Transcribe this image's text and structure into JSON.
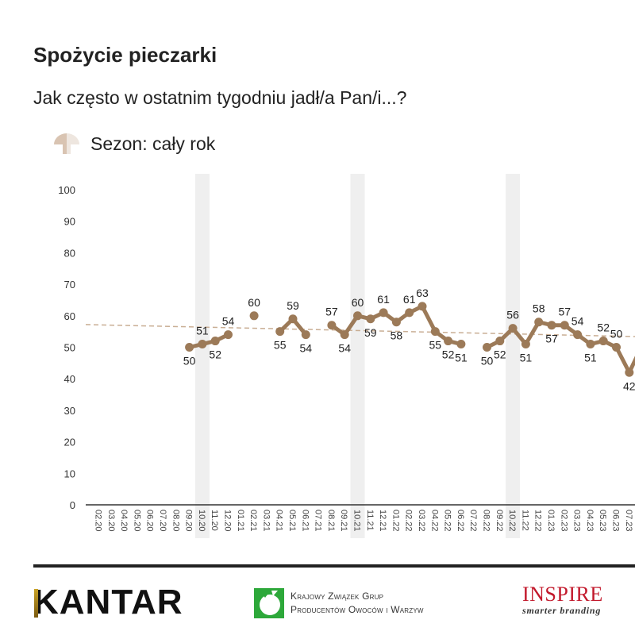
{
  "header": {
    "title": "Spożycie pieczarki",
    "subtitle": "Jak często w ostatnim tygodniu jadł/a Pan/i...?",
    "season_icon": "mushroom-icon",
    "season_label": "Sezon: cały rok"
  },
  "colors": {
    "series": "#9C7A58",
    "trend": "#C9AE94",
    "band": "#EFEFEF",
    "axis": "#333333",
    "text": "#222222"
  },
  "chart_data": {
    "type": "line",
    "title": "Spożycie pieczarki",
    "subtitle": "Jak często w ostatnim tygodniu jadł/a Pan/i...? — Sezon: cały rok",
    "xlabel": "",
    "ylabel": "",
    "ylim": [
      0,
      100
    ],
    "yticks": [
      0,
      10,
      20,
      30,
      40,
      50,
      60,
      70,
      80,
      90,
      100
    ],
    "grid": false,
    "legend": null,
    "categories": [
      "02.20",
      "03.20",
      "04.20",
      "05.20",
      "06.20",
      "07.20",
      "08.20",
      "09.20",
      "10.20",
      "11.20",
      "12.20",
      "01.21",
      "02.21",
      "03.21",
      "04.21",
      "05.21",
      "06.21",
      "07.21",
      "08.21",
      "09.21",
      "10.21",
      "11.21",
      "12.21",
      "01.22",
      "02.22",
      "03.22",
      "04.22",
      "05.22",
      "06.22",
      "07.22",
      "08.22",
      "09.22",
      "10.22",
      "11.22",
      "12.22",
      "01.23",
      "02.23",
      "03.23",
      "04.23",
      "05.23",
      "06.23",
      "07.23"
    ],
    "series": [
      {
        "name": "Spożycie pieczarki",
        "values": [
          null,
          null,
          null,
          null,
          null,
          null,
          null,
          50,
          51,
          52,
          54,
          null,
          60,
          null,
          55,
          59,
          54,
          null,
          57,
          54,
          60,
          59,
          61,
          58,
          61,
          63,
          55,
          52,
          51,
          null,
          50,
          52,
          56,
          51,
          58,
          57,
          57,
          54,
          51,
          52,
          50,
          42
        ]
      }
    ],
    "highlight_bands": [
      "10.20",
      "10.21",
      "10.22"
    ],
    "trendline": {
      "style": "dashed",
      "start_value": 57.2,
      "end_value": 53.4
    },
    "notes": "Line continues beyond 07.23 (rising), cut off at right edge."
  },
  "footer": {
    "logos": [
      {
        "name": "KANTAR"
      },
      {
        "name": "Krajowy Związek Grup Producentów Owoców i Warzyw",
        "line1": "Krajowy Związek Grup",
        "line2": "Producentów Owoców i Warzyw"
      },
      {
        "name": "INSPIRE",
        "tagline": "smarter branding"
      }
    ]
  }
}
